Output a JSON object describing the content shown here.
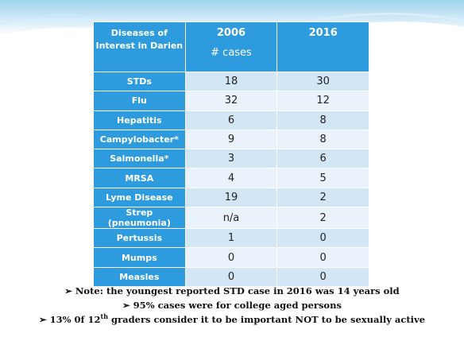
{
  "table": {
    "header": {
      "col0": "Diseases of Interest in Darien",
      "col1": "2006",
      "col1_sub": "# cases",
      "col2": "2016"
    },
    "rows": [
      [
        "STDs",
        "18",
        "30"
      ],
      [
        "Flu",
        "32",
        "12"
      ],
      [
        "Hepatitis",
        "6",
        "8"
      ],
      [
        "Campylobacter*",
        "9",
        "8"
      ],
      [
        "Salmonella*",
        "3",
        "6"
      ],
      [
        "MRSA",
        "4",
        "5"
      ],
      [
        "Lyme Disease",
        "19",
        "2"
      ],
      [
        "Strep (pneumonia)",
        "n/a",
        "2"
      ],
      [
        "Pertussis",
        "1",
        "0"
      ],
      [
        "Mumps",
        "0",
        "0"
      ],
      [
        "Measles",
        "0",
        "0"
      ]
    ]
  },
  "notes": [
    "Note: the youngest reported STD case in 2016 was 14 years old",
    "95% cases were for college aged persons",
    {
      "before": "13% 0f 12",
      "sup": "th",
      "after": "graders consider it to be important NOT to be sexually active"
    }
  ]
}
